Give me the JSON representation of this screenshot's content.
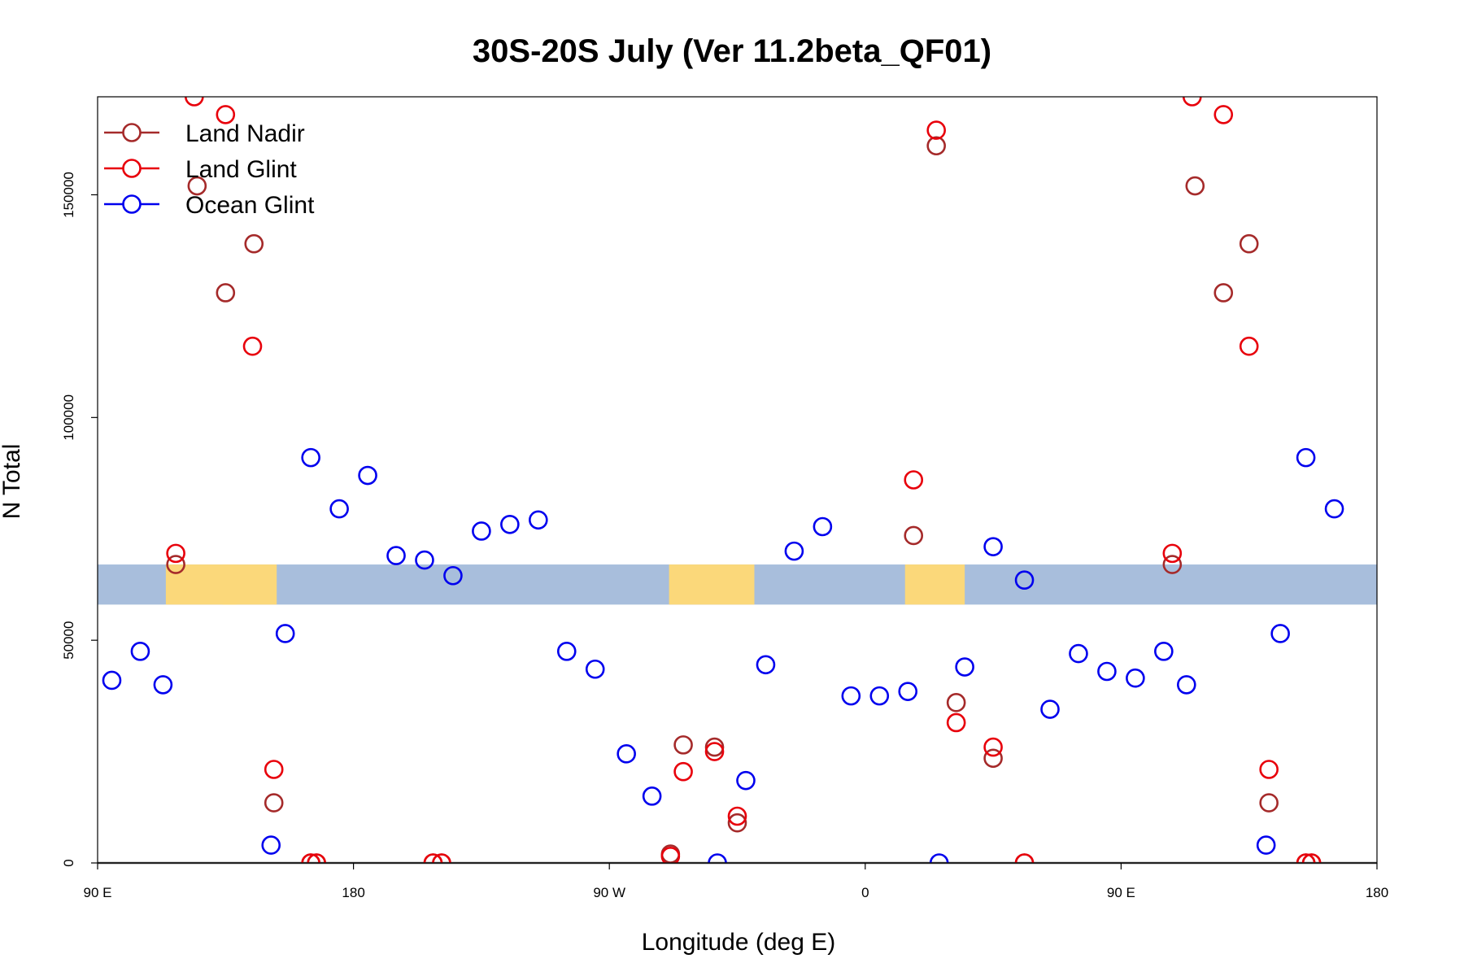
{
  "chart_data": {
    "type": "scatter",
    "title": "30S-20S July (Ver 11.2beta_QF01)",
    "xlabel": "Longitude (deg E)",
    "ylabel": "N Total",
    "xlim": [
      90,
      540
    ],
    "ylim": [
      0,
      172000
    ],
    "x_ticks": [
      {
        "value": 90,
        "label": "90 E"
      },
      {
        "value": 180,
        "label": "180"
      },
      {
        "value": 270,
        "label": "90 W"
      },
      {
        "value": 360,
        "label": "0"
      },
      {
        "value": 450,
        "label": "90 E"
      },
      {
        "value": 540,
        "label": "180"
      }
    ],
    "y_ticks": [
      {
        "value": 0,
        "label": "0"
      },
      {
        "value": 50000,
        "label": "50000"
      },
      {
        "value": 100000,
        "label": "100000"
      },
      {
        "value": 150000,
        "label": "150000"
      }
    ],
    "legend_position": "top-left",
    "colors": {
      "ocean_band": "#a8bedc",
      "land_band": "#fbd87a",
      "baseline": "#555555"
    },
    "map_strip": {
      "y_range": [
        58000,
        67000
      ],
      "land_x_ranges": [
        [
          114,
          153
        ],
        [
          291,
          321
        ],
        [
          374,
          395
        ],
        [
          134,
          139
        ]
      ]
    },
    "series": [
      {
        "name": "Land Nadir",
        "color": "#a52a2a",
        "points": [
          [
            117.5,
            67000
          ],
          [
            125,
            152000
          ],
          [
            135,
            128000
          ],
          [
            145,
            139000
          ],
          [
            152,
            13500
          ],
          [
            165,
            0
          ],
          [
            167,
            0
          ],
          [
            208,
            0
          ],
          [
            211,
            0
          ],
          [
            291.5,
            2000
          ],
          [
            296,
            26500
          ],
          [
            307,
            26000
          ],
          [
            315,
            9000
          ],
          [
            377,
            73500
          ],
          [
            385,
            161000
          ],
          [
            392,
            36000
          ],
          [
            405,
            23500
          ],
          [
            416,
            0
          ],
          [
            468,
            67000
          ],
          [
            476,
            152000
          ],
          [
            486,
            128000
          ],
          [
            495,
            139000
          ],
          [
            502,
            13500
          ],
          [
            515,
            0
          ],
          [
            517,
            0
          ]
        ]
      },
      {
        "name": "Land Glint",
        "color": "#e8000b",
        "points": [
          [
            117.5,
            69500
          ],
          [
            124,
            172000
          ],
          [
            135,
            168000
          ],
          [
            144.5,
            116000
          ],
          [
            152,
            21000
          ],
          [
            165,
            0
          ],
          [
            167,
            0
          ],
          [
            208,
            0
          ],
          [
            211,
            0
          ],
          [
            291.5,
            1500
          ],
          [
            296,
            20500
          ],
          [
            307,
            25000
          ],
          [
            315,
            10500
          ],
          [
            377,
            86000
          ],
          [
            385,
            164500
          ],
          [
            392,
            31500
          ],
          [
            405,
            26000
          ],
          [
            416,
            0
          ],
          [
            468,
            69500
          ],
          [
            475,
            172000
          ],
          [
            486,
            168000
          ],
          [
            495,
            116000
          ],
          [
            502,
            21000
          ],
          [
            515,
            0
          ],
          [
            517,
            0
          ]
        ]
      },
      {
        "name": "Ocean Glint",
        "color": "#0000ee",
        "points": [
          [
            95,
            41000
          ],
          [
            105,
            47500
          ],
          [
            113,
            40000
          ],
          [
            151,
            4000
          ],
          [
            156,
            51500
          ],
          [
            165,
            91000
          ],
          [
            175,
            79500
          ],
          [
            185,
            87000
          ],
          [
            195,
            69000
          ],
          [
            205,
            68000
          ],
          [
            215,
            64500
          ],
          [
            225,
            74500
          ],
          [
            235,
            76000
          ],
          [
            245,
            77000
          ],
          [
            255,
            47500
          ],
          [
            265,
            43500
          ],
          [
            276,
            24500
          ],
          [
            285,
            15000
          ],
          [
            308,
            0
          ],
          [
            318,
            18500
          ],
          [
            325,
            44500
          ],
          [
            335,
            70000
          ],
          [
            345,
            75500
          ],
          [
            355,
            37500
          ],
          [
            365,
            37500
          ],
          [
            375,
            38500
          ],
          [
            386,
            0
          ],
          [
            395,
            44000
          ],
          [
            405,
            71000
          ],
          [
            416,
            63500
          ],
          [
            425,
            34500
          ],
          [
            435,
            47000
          ],
          [
            445,
            43000
          ],
          [
            455,
            41500
          ],
          [
            465,
            47500
          ],
          [
            473,
            40000
          ],
          [
            501,
            4000
          ],
          [
            506,
            51500
          ],
          [
            515,
            91000
          ],
          [
            525,
            79500
          ]
        ]
      }
    ]
  }
}
